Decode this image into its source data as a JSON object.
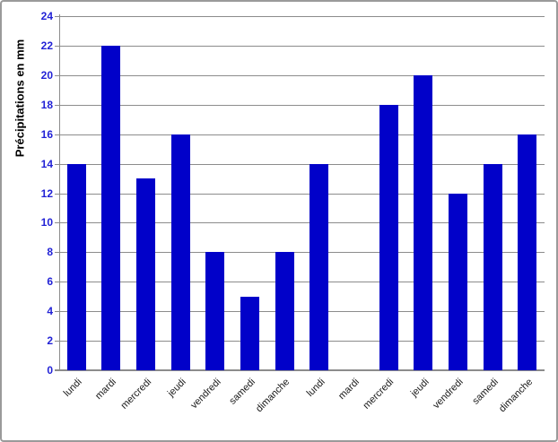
{
  "chart_data": {
    "type": "bar",
    "title": "",
    "ylabel": "Précipitations en mm",
    "xlabel": "",
    "categories": [
      "lundi",
      "mardi",
      "mercredi",
      "jeudi",
      "vendredi",
      "samedi",
      "dimanche",
      "lundi",
      "mardi",
      "mercredi",
      "jeudi",
      "vendredi",
      "samedi",
      "dimanche"
    ],
    "values": [
      14,
      22,
      13,
      16,
      8,
      5,
      8,
      14,
      0,
      18,
      20,
      12,
      14,
      16
    ],
    "ylim": [
      0,
      24
    ],
    "ytick_step": 2,
    "ytick_labels": [
      "0",
      "2",
      "4",
      "6",
      "8",
      "10",
      "12",
      "14",
      "16",
      "18",
      "20",
      "22",
      "24"
    ],
    "grid": true,
    "legend_position": "none",
    "colors": {
      "bar": "#0101c9",
      "axis_tick_text": "#2222d6",
      "gridline": "#8c8c8c",
      "axis_line": "#8c8c8c",
      "category_text": "#1a1a1a",
      "frame_border": "#9a9a9a",
      "background": "#ffffff"
    }
  }
}
